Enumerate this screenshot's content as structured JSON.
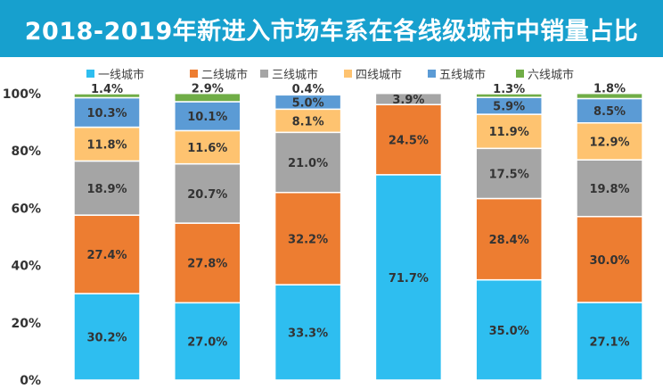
{
  "chart_data": {
    "type": "bar",
    "stacked": true,
    "title": "2018-2019年新进入市场车系在各线级城市中销量占比",
    "categories": [
      "",
      "",
      "",
      "",
      "",
      ""
    ],
    "series": [
      {
        "name": "一线城市",
        "color": "#2ebef0",
        "values": [
          30.2,
          27.0,
          33.3,
          71.7,
          35.0,
          27.1
        ]
      },
      {
        "name": "二线城市",
        "color": "#ed7d31",
        "values": [
          27.4,
          27.8,
          32.2,
          24.5,
          28.4,
          30.0
        ]
      },
      {
        "name": "三线城市",
        "color": "#a5a5a5",
        "values": [
          18.9,
          20.7,
          21.0,
          3.9,
          17.5,
          19.8
        ]
      },
      {
        "name": "四线城市",
        "color": "#fec370",
        "values": [
          11.8,
          11.6,
          8.1,
          0,
          11.9,
          12.9
        ]
      },
      {
        "name": "五线城市",
        "color": "#5b9bd5",
        "values": [
          10.3,
          10.1,
          5.0,
          0,
          5.9,
          8.5
        ]
      },
      {
        "name": "六线城市",
        "color": "#70ad47",
        "values": [
          1.4,
          2.9,
          0.4,
          0,
          1.3,
          1.8
        ]
      }
    ],
    "data_labels": [
      [
        "30.2%",
        "27.4%",
        "18.9%",
        "11.8%",
        "10.3%",
        "1.4%"
      ],
      [
        "27.0%",
        "27.8%",
        "20.7%",
        "11.6%",
        "10.1%",
        "2.9%"
      ],
      [
        "33.3%",
        "32.2%",
        "21.0%",
        "8.1%",
        "5.0%",
        "0.4%"
      ],
      [
        "71.7%",
        "24.5%",
        "3.9%",
        "",
        "",
        ""
      ],
      [
        "35.0%",
        "28.4%",
        "17.5%",
        "11.9%",
        "5.9%",
        "1.3%"
      ],
      [
        "27.1%",
        "30.0%",
        "19.8%",
        "12.9%",
        "8.5%",
        "1.8%"
      ]
    ],
    "y_ticks": [
      "0%",
      "20%",
      "40%",
      "60%",
      "80%",
      "100%"
    ],
    "ylim": [
      0,
      100
    ],
    "legend": "top",
    "grid": false
  }
}
